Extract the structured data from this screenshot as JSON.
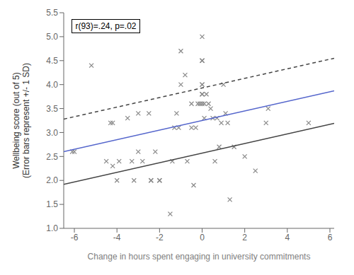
{
  "chart_data": {
    "type": "scatter",
    "xlabel": "Change in hours spent engaging in university commitments",
    "ylabel": "Wellbeing score (out of 5)\n(Error bars represent +/- 1 SD)",
    "annotation": "r(93)=.24, p=.02",
    "xlim": [
      -6.5,
      6.2
    ],
    "ylim": [
      1.0,
      5.5
    ],
    "xticks": [
      -6,
      -4,
      -2,
      0,
      2,
      4,
      6
    ],
    "yticks": [
      {
        "value": 1.0,
        "label": "1.0"
      },
      1.5,
      {
        "value": 2.0,
        "label": "2.0"
      },
      2.5,
      {
        "value": 3.0,
        "label": "3.0"
      },
      3.5,
      {
        "value": 4.0,
        "label": "4.0"
      },
      4.5,
      {
        "value": 5.0,
        "label": "5.0"
      },
      5.5
    ],
    "series": [
      {
        "type": "scatter",
        "color": "#888888",
        "marker": "x",
        "x": [
          -6.1,
          -6.0,
          -5.2,
          -4.5,
          -4.3,
          -4.2,
          -4.2,
          -4.0,
          -3.9,
          -3.5,
          -3.3,
          -3.2,
          -3.0,
          -3.0,
          -2.8,
          -2.5,
          -2.4,
          -2.4,
          -2.2,
          -2.0,
          -2.0,
          -1.5,
          -1.4,
          -1.3,
          -1.2,
          -1.1,
          -1.0,
          -1.0,
          -0.8,
          -0.7,
          -0.5,
          -0.5,
          -0.4,
          -0.3,
          -0.2,
          -0.1,
          0.0,
          0.0,
          0.0,
          0.0,
          0.0,
          0.0,
          0.0,
          0.0,
          0.1,
          0.1,
          0.2,
          0.3,
          0.4,
          0.5,
          0.6,
          0.7,
          0.8,
          0.9,
          1.0,
          1.1,
          1.2,
          1.3,
          1.5,
          2.0,
          2.5,
          3.0,
          3.1,
          5.0
        ],
        "values": [
          2.6,
          2.6,
          4.4,
          2.4,
          3.2,
          3.2,
          2.3,
          2.0,
          2.4,
          3.3,
          2.4,
          2.0,
          3.4,
          2.6,
          2.4,
          3.4,
          2.0,
          2.0,
          2.6,
          2.0,
          2.0,
          1.3,
          2.4,
          3.1,
          3.4,
          3.1,
          4.7,
          4.0,
          4.2,
          2.4,
          3.1,
          3.6,
          1.9,
          3.1,
          3.6,
          3.6,
          5.0,
          4.5,
          4.5,
          4.0,
          4.0,
          3.8,
          3.8,
          3.6,
          3.6,
          3.3,
          3.8,
          3.6,
          3.5,
          3.3,
          2.4,
          3.3,
          2.7,
          3.2,
          4.0,
          3.4,
          3.2,
          1.6,
          2.7,
          2.5,
          2.2,
          3.2,
          3.5,
          3.2
        ]
      },
      {
        "type": "line",
        "color": "#444444",
        "line_style": "dashed",
        "x": [
          -6.5,
          6.2
        ],
        "values": [
          3.28,
          4.55
        ]
      },
      {
        "type": "line",
        "color": "#444444",
        "line_style": "solid",
        "x": [
          -6.5,
          6.2
        ],
        "values": [
          1.92,
          3.19
        ]
      },
      {
        "type": "line",
        "color": "#5566CC",
        "line_style": "solid",
        "x": [
          -6.5,
          6.2
        ],
        "values": [
          2.6,
          3.87
        ]
      }
    ]
  }
}
